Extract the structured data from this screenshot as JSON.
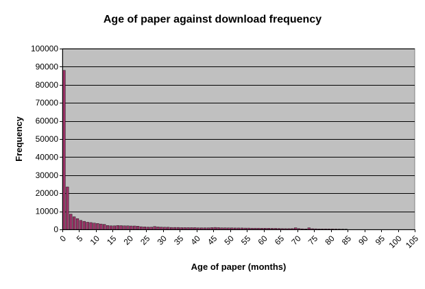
{
  "chart_data": {
    "type": "bar",
    "title": "Age of paper against download frequency",
    "xlabel": "Age of paper (months)",
    "ylabel": "Frequency",
    "ylim": [
      0,
      100000
    ],
    "yticks": [
      "0",
      "10000",
      "20000",
      "30000",
      "40000",
      "50000",
      "60000",
      "70000",
      "80000",
      "90000",
      "100000"
    ],
    "xlim": [
      0,
      105
    ],
    "xticks": [
      "0",
      "5",
      "10",
      "15",
      "20",
      "25",
      "30",
      "35",
      "40",
      "45",
      "50",
      "55",
      "60",
      "65",
      "70",
      "75",
      "80",
      "85",
      "90",
      "95",
      "100",
      "105"
    ],
    "grid": true,
    "legend": "none",
    "colors": {
      "plot_bg": "#c0c0c0",
      "bar_fill": "#993366",
      "bar_stroke": "#000000"
    },
    "categories": [
      1,
      2,
      3,
      4,
      5,
      6,
      7,
      8,
      9,
      10,
      11,
      12,
      13,
      14,
      15,
      16,
      17,
      18,
      19,
      20,
      21,
      22,
      23,
      24,
      25,
      26,
      27,
      28,
      29,
      30,
      31,
      32,
      33,
      34,
      35,
      36,
      37,
      38,
      39,
      40,
      41,
      42,
      43,
      44,
      45,
      46,
      47,
      48,
      49,
      50,
      51,
      52,
      53,
      54,
      55,
      56,
      57,
      58,
      59,
      60,
      61,
      62,
      63,
      64,
      65,
      66,
      67,
      68,
      69,
      70,
      71,
      72,
      73,
      74,
      75,
      76,
      77,
      78,
      79,
      80,
      81,
      82,
      83,
      84,
      85
    ],
    "values": [
      88000,
      23500,
      8500,
      7000,
      6000,
      5000,
      4500,
      4000,
      3800,
      3500,
      3300,
      3000,
      2800,
      2200,
      2000,
      2000,
      2200,
      2100,
      2000,
      2000,
      1900,
      1900,
      1800,
      1500,
      1400,
      1300,
      1300,
      1600,
      1400,
      1300,
      1200,
      1200,
      1100,
      1100,
      1100,
      1000,
      1000,
      1000,
      1000,
      1000,
      900,
      900,
      900,
      900,
      1000,
      1100,
      1000,
      900,
      900,
      850,
      850,
      800,
      800,
      800,
      750,
      750,
      700,
      700,
      700,
      650,
      650,
      650,
      600,
      600,
      550,
      500,
      450,
      450,
      500,
      900,
      500,
      350,
      300,
      900,
      400,
      350,
      300,
      300,
      280,
      250,
      250,
      220,
      200,
      180,
      150
    ]
  }
}
